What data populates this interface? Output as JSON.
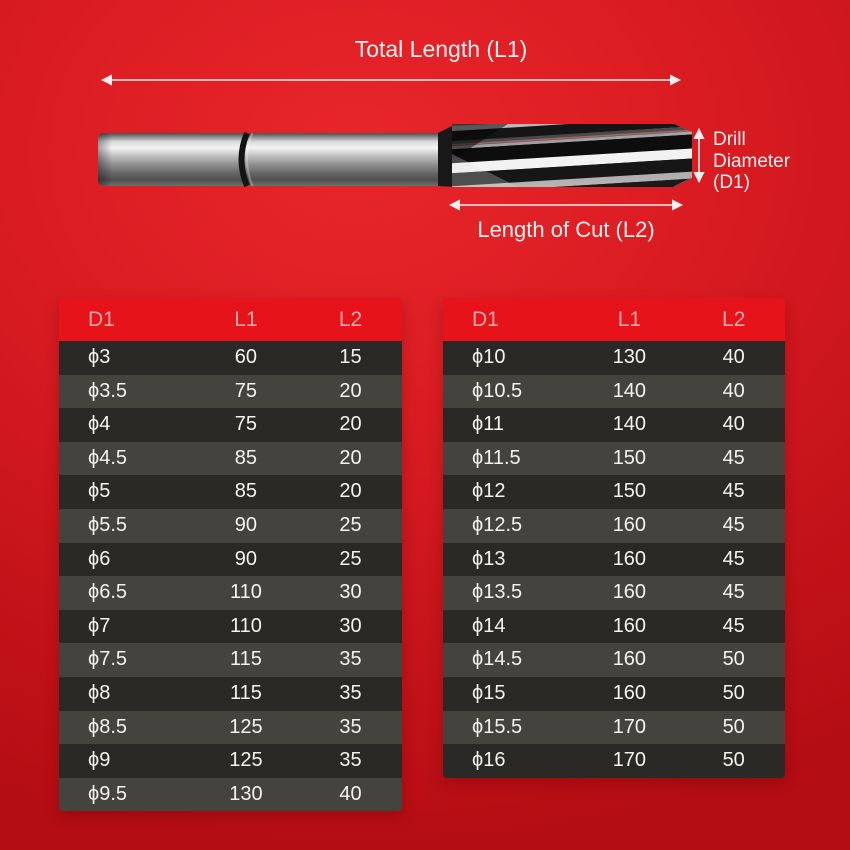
{
  "diagram": {
    "total_length_label": "Total Length (L1)",
    "drill_diameter": {
      "lines": [
        "Drill",
        "Diameter",
        "(D1)"
      ]
    },
    "length_of_cut_label": "Length of Cut (L2)"
  },
  "tables": {
    "columns": [
      "D1",
      "L1",
      "L2"
    ],
    "left": {
      "rows": [
        [
          "ϕ3",
          "60",
          "15"
        ],
        [
          "ϕ3.5",
          "75",
          "20"
        ],
        [
          "ϕ4",
          "75",
          "20"
        ],
        [
          "ϕ4.5",
          "85",
          "20"
        ],
        [
          "ϕ5",
          "85",
          "20"
        ],
        [
          "ϕ5.5",
          "90",
          "25"
        ],
        [
          "ϕ6",
          "90",
          "25"
        ],
        [
          "ϕ6.5",
          "110",
          "30"
        ],
        [
          "ϕ7",
          "110",
          "30"
        ],
        [
          "ϕ7.5",
          "115",
          "35"
        ],
        [
          "ϕ8",
          "115",
          "35"
        ],
        [
          "ϕ8.5",
          "125",
          "35"
        ],
        [
          "ϕ9",
          "125",
          "35"
        ],
        [
          "ϕ9.5",
          "130",
          "40"
        ]
      ]
    },
    "right": {
      "rows": [
        [
          "ϕ10",
          "130",
          "40"
        ],
        [
          "ϕ10.5",
          "140",
          "40"
        ],
        [
          "ϕ11",
          "140",
          "40"
        ],
        [
          "ϕ11.5",
          "150",
          "45"
        ],
        [
          "ϕ12",
          "150",
          "45"
        ],
        [
          "ϕ12.5",
          "160",
          "45"
        ],
        [
          "ϕ13",
          "160",
          "45"
        ],
        [
          "ϕ13.5",
          "160",
          "45"
        ],
        [
          "ϕ14",
          "160",
          "45"
        ],
        [
          "ϕ14.5",
          "160",
          "50"
        ],
        [
          "ϕ15",
          "160",
          "50"
        ],
        [
          "ϕ15.5",
          "170",
          "50"
        ],
        [
          "ϕ16",
          "170",
          "50"
        ]
      ]
    }
  },
  "colors": {
    "background_red": "#d81e24",
    "header_red": "#e6131a",
    "header_text": "#f2a7a7",
    "row_dark": "#2a2926",
    "row_light": "#44433d",
    "cell_text": "#f4f2ef",
    "annotation_text": "#f8efef"
  }
}
